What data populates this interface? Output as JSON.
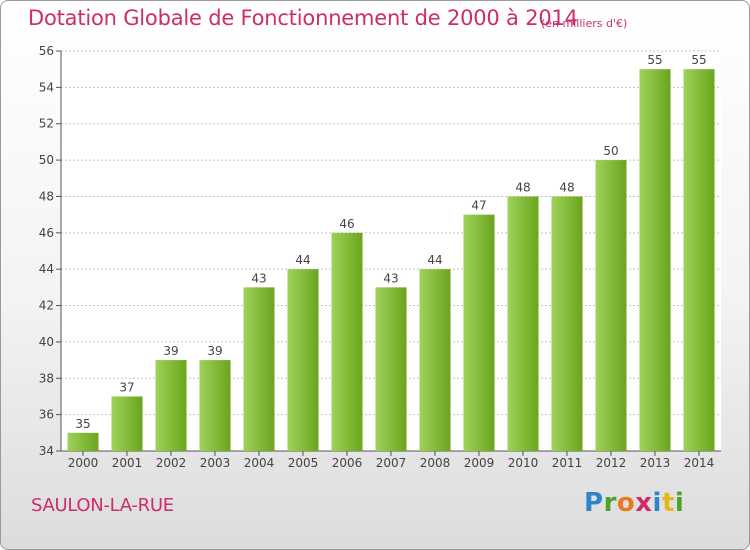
{
  "header": {
    "title": "Dotation Globale de Fonctionnement de 2000 à 2014",
    "subtitle": "(en milliers d'€)"
  },
  "footer": {
    "commune": "SAULON-LA-RUE",
    "logo_text": "Proxiti"
  },
  "colors": {
    "title": "#cc2d6b",
    "bar_light": "#9ed25a",
    "bar_dark": "#6aa51c",
    "grid": "#b8b8b8"
  },
  "chart_data": {
    "type": "bar",
    "title": "Dotation Globale de Fonctionnement de 2000 à 2014",
    "subtitle": "(en milliers d'€)",
    "xlabel": "",
    "ylabel": "",
    "ylim": [
      34,
      56
    ],
    "yticks": [
      34,
      36,
      38,
      40,
      42,
      44,
      46,
      48,
      50,
      52,
      54,
      56
    ],
    "grid": true,
    "categories": [
      "2000",
      "2001",
      "2002",
      "2003",
      "2004",
      "2005",
      "2006",
      "2007",
      "2008",
      "2009",
      "2010",
      "2011",
      "2012",
      "2013",
      "2014"
    ],
    "values": [
      35,
      37,
      39,
      39,
      43,
      44,
      46,
      43,
      44,
      47,
      48,
      48,
      50,
      55,
      55
    ]
  }
}
